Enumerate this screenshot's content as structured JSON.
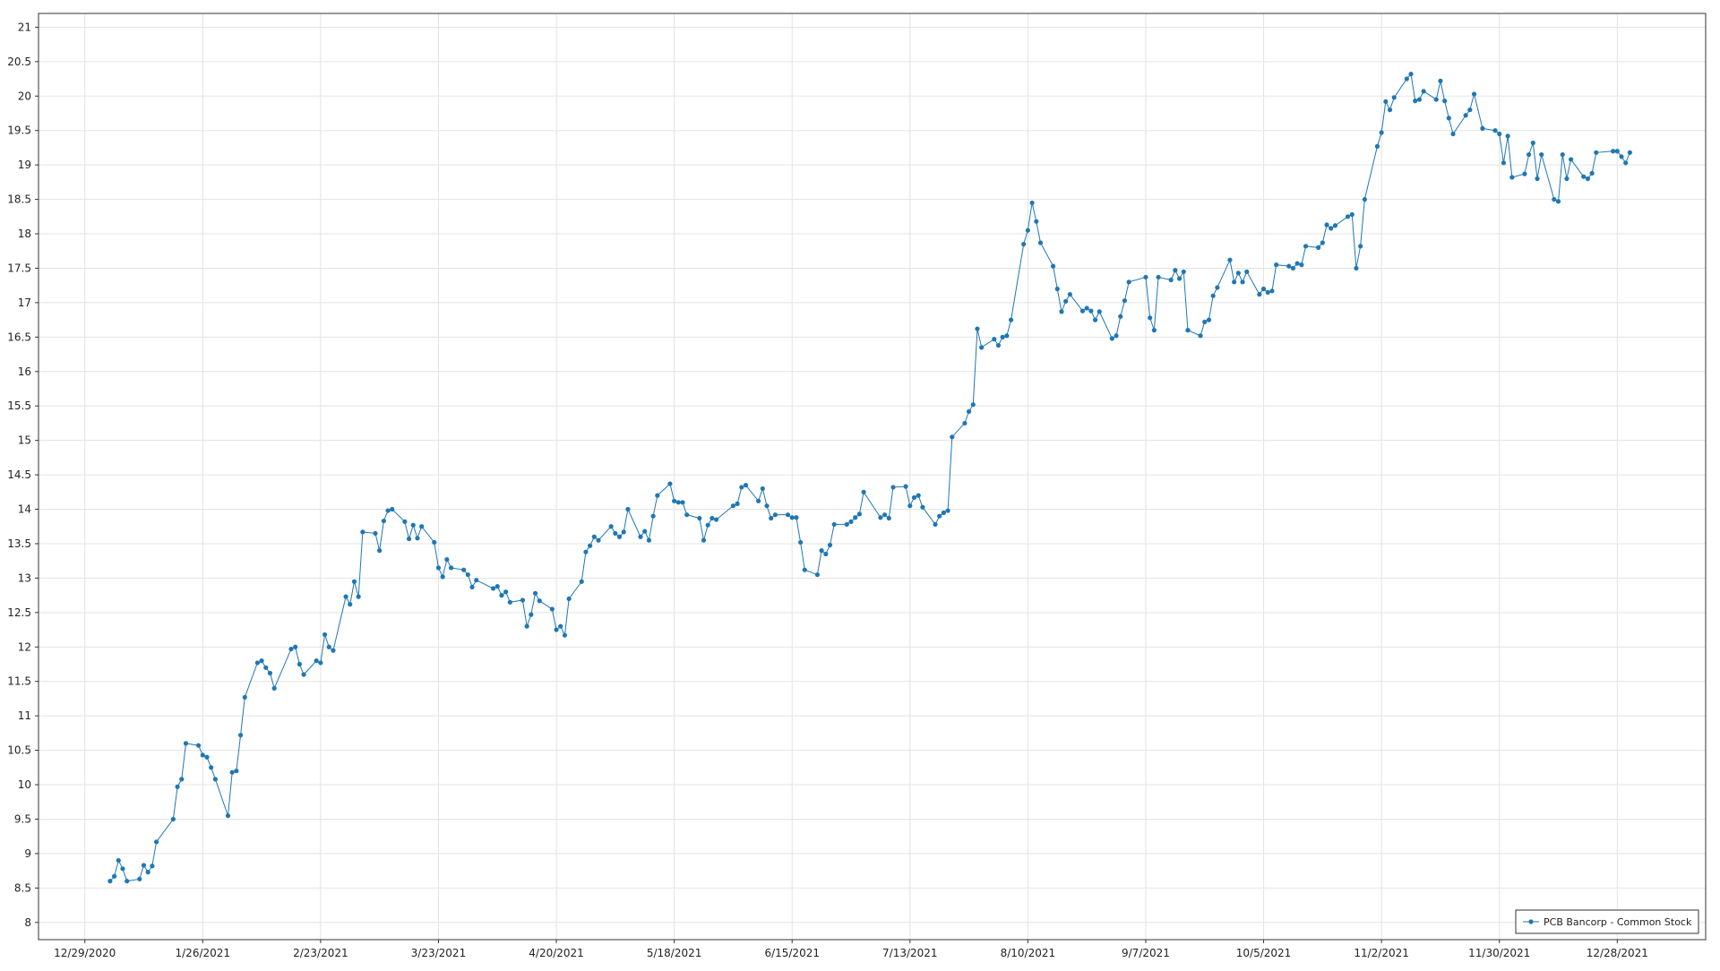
{
  "chart_data": {
    "type": "line",
    "color": "#1f77b4",
    "grid": true,
    "legend": "lower right",
    "xlim": [
      "12/18/2020",
      "1/18/2022"
    ],
    "ylim": [
      7.75,
      21.2
    ],
    "xticks": [
      "12/29/2020",
      "1/26/2021",
      "2/23/2021",
      "3/23/2021",
      "4/20/2021",
      "5/18/2021",
      "6/15/2021",
      "7/13/2021",
      "8/10/2021",
      "9/7/2021",
      "10/5/2021",
      "11/2/2021",
      "11/30/2021",
      "12/28/2021"
    ],
    "yticks": [
      8,
      8.5,
      9,
      9.5,
      10,
      10.5,
      11,
      11.5,
      12,
      12.5,
      13,
      13.5,
      14,
      14.5,
      15,
      15.5,
      16,
      16.5,
      17,
      17.5,
      18,
      18.5,
      19,
      19.5,
      20,
      20.5,
      21
    ],
    "series": [
      {
        "name": "PCB Bancorp - Common Stock",
        "color": "#1f77b4",
        "x": [
          "1/4/2021",
          "1/5/2021",
          "1/6/2021",
          "1/7/2021",
          "1/8/2021",
          "1/11/2021",
          "1/12/2021",
          "1/13/2021",
          "1/14/2021",
          "1/15/2021",
          "1/19/2021",
          "1/20/2021",
          "1/21/2021",
          "1/22/2021",
          "1/25/2021",
          "1/26/2021",
          "1/27/2021",
          "1/28/2021",
          "1/29/2021",
          "2/1/2021",
          "2/2/2021",
          "2/3/2021",
          "2/4/2021",
          "2/5/2021",
          "2/8/2021",
          "2/9/2021",
          "2/10/2021",
          "2/11/2021",
          "2/12/2021",
          "2/16/2021",
          "2/17/2021",
          "2/18/2021",
          "2/19/2021",
          "2/22/2021",
          "2/23/2021",
          "2/24/2021",
          "2/25/2021",
          "2/26/2021",
          "3/1/2021",
          "3/2/2021",
          "3/3/2021",
          "3/4/2021",
          "3/5/2021",
          "3/8/2021",
          "3/9/2021",
          "3/10/2021",
          "3/11/2021",
          "3/12/2021",
          "3/15/2021",
          "3/16/2021",
          "3/17/2021",
          "3/18/2021",
          "3/19/2021",
          "3/22/2021",
          "3/23/2021",
          "3/24/2021",
          "3/25/2021",
          "3/26/2021",
          "3/29/2021",
          "3/30/2021",
          "3/31/2021",
          "4/1/2021",
          "4/5/2021",
          "4/6/2021",
          "4/7/2021",
          "4/8/2021",
          "4/9/2021",
          "4/12/2021",
          "4/13/2021",
          "4/14/2021",
          "4/15/2021",
          "4/16/2021",
          "4/19/2021",
          "4/20/2021",
          "4/21/2021",
          "4/22/2021",
          "4/23/2021",
          "4/26/2021",
          "4/27/2021",
          "4/28/2021",
          "4/29/2021",
          "4/30/2021",
          "5/3/2021",
          "5/4/2021",
          "5/5/2021",
          "5/6/2021",
          "5/7/2021",
          "5/10/2021",
          "5/11/2021",
          "5/12/2021",
          "5/13/2021",
          "5/14/2021",
          "5/17/2021",
          "5/18/2021",
          "5/19/2021",
          "5/20/2021",
          "5/21/2021",
          "5/24/2021",
          "5/25/2021",
          "5/26/2021",
          "5/27/2021",
          "5/28/2021",
          "6/1/2021",
          "6/2/2021",
          "6/3/2021",
          "6/4/2021",
          "6/7/2021",
          "6/8/2021",
          "6/9/2021",
          "6/10/2021",
          "6/11/2021",
          "6/14/2021",
          "6/15/2021",
          "6/16/2021",
          "6/17/2021",
          "6/18/2021",
          "6/21/2021",
          "6/22/2021",
          "6/23/2021",
          "6/24/2021",
          "6/25/2021",
          "6/28/2021",
          "6/29/2021",
          "6/30/2021",
          "7/1/2021",
          "7/2/2021",
          "7/6/2021",
          "7/7/2021",
          "7/8/2021",
          "7/9/2021",
          "7/12/2021",
          "7/13/2021",
          "7/14/2021",
          "7/15/2021",
          "7/16/2021",
          "7/19/2021",
          "7/20/2021",
          "7/21/2021",
          "7/22/2021",
          "7/23/2021",
          "7/26/2021",
          "7/27/2021",
          "7/28/2021",
          "7/29/2021",
          "7/30/2021",
          "8/2/2021",
          "8/3/2021",
          "8/4/2021",
          "8/5/2021",
          "8/6/2021",
          "8/9/2021",
          "8/10/2021",
          "8/11/2021",
          "8/12/2021",
          "8/13/2021",
          "8/16/2021",
          "8/17/2021",
          "8/18/2021",
          "8/19/2021",
          "8/20/2021",
          "8/23/2021",
          "8/24/2021",
          "8/25/2021",
          "8/26/2021",
          "8/27/2021",
          "8/30/2021",
          "8/31/2021",
          "9/1/2021",
          "9/2/2021",
          "9/3/2021",
          "9/7/2021",
          "9/8/2021",
          "9/9/2021",
          "9/10/2021",
          "9/13/2021",
          "9/14/2021",
          "9/15/2021",
          "9/16/2021",
          "9/17/2021",
          "9/20/2021",
          "9/21/2021",
          "9/22/2021",
          "9/23/2021",
          "9/24/2021",
          "9/27/2021",
          "9/28/2021",
          "9/29/2021",
          "9/30/2021",
          "10/1/2021",
          "10/4/2021",
          "10/5/2021",
          "10/6/2021",
          "10/7/2021",
          "10/8/2021",
          "10/11/2021",
          "10/12/2021",
          "10/13/2021",
          "10/14/2021",
          "10/15/2021",
          "10/18/2021",
          "10/19/2021",
          "10/20/2021",
          "10/21/2021",
          "10/22/2021",
          "10/25/2021",
          "10/26/2021",
          "10/27/2021",
          "10/28/2021",
          "10/29/2021",
          "11/1/2021",
          "11/2/2021",
          "11/3/2021",
          "11/4/2021",
          "11/5/2021",
          "11/8/2021",
          "11/9/2021",
          "11/10/2021",
          "11/11/2021",
          "11/12/2021",
          "11/15/2021",
          "11/16/2021",
          "11/17/2021",
          "11/18/2021",
          "11/19/2021",
          "11/22/2021",
          "11/23/2021",
          "11/24/2021",
          "11/26/2021",
          "11/29/2021",
          "11/30/2021",
          "12/1/2021",
          "12/2/2021",
          "12/3/2021",
          "12/6/2021",
          "12/7/2021",
          "12/8/2021",
          "12/9/2021",
          "12/10/2021",
          "12/13/2021",
          "12/14/2021",
          "12/15/2021",
          "12/16/2021",
          "12/17/2021",
          "12/20/2021",
          "12/21/2021",
          "12/22/2021",
          "12/23/2021",
          "12/27/2021",
          "12/28/2021",
          "12/29/2021",
          "12/30/2021",
          "12/31/2021"
        ],
        "values": [
          8.6,
          8.67,
          8.9,
          8.78,
          8.6,
          8.63,
          8.83,
          8.73,
          8.82,
          9.17,
          9.5,
          9.97,
          10.08,
          10.6,
          10.57,
          10.43,
          10.4,
          10.25,
          10.08,
          9.55,
          10.18,
          10.2,
          10.72,
          11.27,
          11.77,
          11.8,
          11.7,
          11.62,
          11.4,
          11.97,
          12.0,
          11.75,
          11.6,
          11.8,
          11.77,
          12.18,
          12.0,
          11.95,
          12.73,
          12.62,
          12.95,
          12.73,
          13.67,
          13.65,
          13.4,
          13.83,
          13.98,
          14.0,
          13.82,
          13.57,
          13.77,
          13.58,
          13.75,
          13.52,
          13.15,
          13.02,
          13.27,
          13.15,
          13.12,
          13.05,
          12.87,
          12.97,
          12.85,
          12.88,
          12.75,
          12.8,
          12.65,
          12.68,
          12.3,
          12.47,
          12.78,
          12.67,
          12.55,
          12.25,
          12.3,
          12.17,
          12.7,
          12.95,
          13.38,
          13.47,
          13.6,
          13.55,
          13.75,
          13.65,
          13.6,
          13.67,
          14.0,
          13.6,
          13.68,
          13.55,
          13.9,
          14.2,
          14.37,
          14.12,
          14.1,
          14.1,
          13.92,
          13.87,
          13.55,
          13.77,
          13.87,
          13.85,
          14.05,
          14.08,
          14.32,
          14.35,
          14.12,
          14.3,
          14.05,
          13.87,
          13.92,
          13.92,
          13.88,
          13.88,
          13.52,
          13.12,
          13.05,
          13.4,
          13.35,
          13.48,
          13.78,
          13.78,
          13.82,
          13.88,
          13.93,
          14.25,
          13.88,
          13.92,
          13.87,
          14.32,
          14.33,
          14.05,
          14.17,
          14.2,
          14.03,
          13.78,
          13.9,
          13.95,
          13.98,
          15.05,
          15.25,
          15.42,
          15.52,
          16.62,
          16.35,
          16.47,
          16.38,
          16.5,
          16.52,
          16.75,
          17.85,
          18.05,
          18.45,
          18.18,
          17.87,
          17.53,
          17.2,
          16.87,
          17.02,
          17.12,
          16.88,
          16.92,
          16.88,
          16.75,
          16.87,
          16.48,
          16.52,
          16.8,
          17.03,
          17.3,
          17.37,
          16.78,
          16.6,
          17.37,
          17.33,
          17.47,
          17.35,
          17.45,
          16.6,
          16.52,
          16.72,
          16.75,
          17.1,
          17.22,
          17.62,
          17.3,
          17.43,
          17.3,
          17.45,
          17.12,
          17.2,
          17.15,
          17.17,
          17.55,
          17.53,
          17.5,
          17.57,
          17.55,
          17.82,
          17.8,
          17.87,
          18.13,
          18.08,
          18.12,
          18.25,
          18.28,
          17.5,
          17.82,
          18.5,
          19.27,
          19.47,
          19.92,
          19.8,
          19.98,
          20.25,
          20.32,
          19.93,
          19.95,
          20.07,
          19.95,
          20.22,
          19.93,
          19.68,
          19.45,
          19.72,
          19.8,
          20.03,
          19.53,
          19.5,
          19.45,
          19.03,
          19.42,
          18.82,
          18.87,
          19.15,
          19.32,
          18.8,
          19.15,
          18.5,
          18.47,
          19.15,
          18.8,
          19.08,
          18.83,
          18.8,
          18.88,
          19.18,
          19.2,
          19.2,
          19.12,
          19.03,
          19.18
        ]
      }
    ]
  }
}
